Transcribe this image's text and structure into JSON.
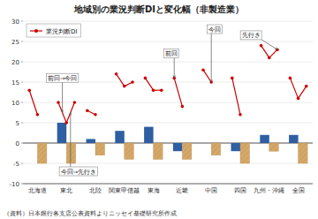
{
  "chart_data": {
    "type": "bar",
    "title": "地域別の業況判断DIと変化幅（非製造業）",
    "source": "（資料）日本銀行各支店公表資料よりニッセイ基礎研究所作成",
    "categories": [
      "北海道",
      "東北",
      "北陸",
      "関東甲信越",
      "東海",
      "近畿",
      "中国",
      "四国",
      "九州・沖縄",
      "全国"
    ],
    "series": [
      {
        "type": "bar",
        "color": "#2E5FA3",
        "values": [
          0,
          5,
          1,
          3,
          4,
          -2,
          0,
          -2,
          2,
          2
        ]
      },
      {
        "type": "bar",
        "color": "#D4A96A",
        "values": [
          -5,
          -5,
          -3,
          -4,
          -4,
          -4,
          -3,
          -5,
          -2,
          -5
        ]
      },
      {
        "type": "line",
        "name": "業況判断DI",
        "color": "#CC0000",
        "marker": "circle",
        "values": [
          13,
          10,
          8,
          17,
          16,
          16,
          18,
          16,
          24,
          16
        ]
      },
      {
        "type": "line",
        "color": "#CC0000",
        "marker": "circle",
        "values": [
          7,
          5,
          7,
          14,
          13,
          9,
          15,
          7,
          21,
          11
        ]
      },
      {
        "type": "line",
        "color": "#CC0000",
        "marker": "circle",
        "values": [
          null,
          10,
          null,
          15,
          13,
          null,
          null,
          null,
          23,
          14
        ]
      }
    ],
    "ylim": [
      -10,
      30
    ],
    "yticks": [
      -10,
      -5,
      0,
      5,
      10,
      15,
      20,
      25,
      30
    ],
    "grid": true,
    "legend": "upper left",
    "annotations": [
      "前回→今回",
      "今回→先行き",
      "前回",
      "今回",
      "先行き"
    ]
  }
}
